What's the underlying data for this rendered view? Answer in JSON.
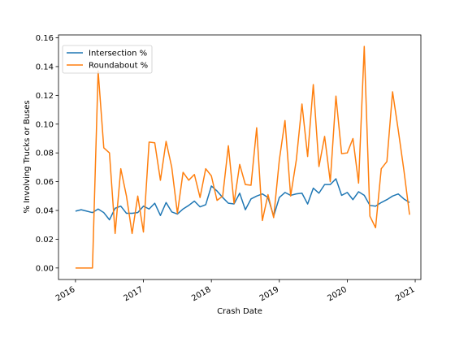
{
  "chart_data": {
    "type": "line",
    "xlabel": "Crash Date",
    "ylabel": "% Involving Trucks or Buses",
    "x_tick_labels": [
      "2016",
      "2017",
      "2018",
      "2019",
      "2020",
      "2021"
    ],
    "y_ticks": [
      0.0,
      0.02,
      0.04,
      0.06,
      0.08,
      0.1,
      0.12,
      0.14,
      0.16
    ],
    "y_tick_labels": [
      "0.00",
      "0.02",
      "0.04",
      "0.06",
      "0.08",
      "0.10",
      "0.12",
      "0.14",
      "0.16"
    ],
    "xlim": [
      "2015-10",
      "2021-02"
    ],
    "ylim": [
      -0.008,
      0.162
    ],
    "grid": false,
    "legend_position": "top-left",
    "x": [
      "2016-01",
      "2016-02",
      "2016-03",
      "2016-04",
      "2016-05",
      "2016-06",
      "2016-07",
      "2016-08",
      "2016-09",
      "2016-10",
      "2016-11",
      "2016-12",
      "2017-01",
      "2017-02",
      "2017-03",
      "2017-04",
      "2017-05",
      "2017-06",
      "2017-07",
      "2017-08",
      "2017-09",
      "2017-10",
      "2017-11",
      "2017-12",
      "2018-01",
      "2018-02",
      "2018-03",
      "2018-04",
      "2018-05",
      "2018-06",
      "2018-07",
      "2018-08",
      "2018-09",
      "2018-10",
      "2018-11",
      "2018-12",
      "2019-01",
      "2019-02",
      "2019-03",
      "2019-04",
      "2019-05",
      "2019-06",
      "2019-07",
      "2019-08",
      "2019-09",
      "2019-10",
      "2019-11",
      "2019-12",
      "2020-01",
      "2020-02",
      "2020-03",
      "2020-04",
      "2020-05",
      "2020-06",
      "2020-07",
      "2020-08",
      "2020-09",
      "2020-10",
      "2020-11",
      "2020-12"
    ],
    "series": [
      {
        "name": "Intersection %",
        "color": "#1f77b4",
        "values": [
          0.0395,
          0.0405,
          0.0395,
          0.0385,
          0.041,
          0.0385,
          0.0335,
          0.0415,
          0.043,
          0.038,
          0.038,
          0.0385,
          0.043,
          0.041,
          0.045,
          0.0365,
          0.0455,
          0.039,
          0.0375,
          0.041,
          0.0435,
          0.0465,
          0.0425,
          0.044,
          0.057,
          0.0535,
          0.049,
          0.045,
          0.0445,
          0.052,
          0.0405,
          0.048,
          0.05,
          0.0515,
          0.049,
          0.036,
          0.049,
          0.0525,
          0.0505,
          0.0515,
          0.052,
          0.0445,
          0.0555,
          0.052,
          0.058,
          0.058,
          0.062,
          0.0505,
          0.0525,
          0.0475,
          0.053,
          0.0505,
          0.0435,
          0.043,
          0.0455,
          0.0475,
          0.05,
          0.0515,
          0.048,
          0.0455
        ]
      },
      {
        "name": "Roundabout %",
        "color": "#ff7f0e",
        "values": [
          0.0,
          0.0,
          0.0,
          0.0,
          0.137,
          0.0835,
          0.08,
          0.024,
          0.069,
          0.05,
          0.024,
          0.05,
          0.025,
          0.0875,
          0.087,
          0.061,
          0.088,
          0.07,
          0.038,
          0.0665,
          0.061,
          0.065,
          0.049,
          0.069,
          0.064,
          0.047,
          0.05,
          0.085,
          0.045,
          0.072,
          0.058,
          0.0575,
          0.0975,
          0.033,
          0.051,
          0.035,
          0.075,
          0.1025,
          0.05,
          0.075,
          0.114,
          0.0775,
          0.1275,
          0.0705,
          0.0915,
          0.06,
          0.1195,
          0.0795,
          0.08,
          0.09,
          0.059,
          0.154,
          0.036,
          0.028,
          0.069,
          0.074,
          0.1225,
          0.096,
          0.068,
          0.037
        ]
      }
    ]
  }
}
